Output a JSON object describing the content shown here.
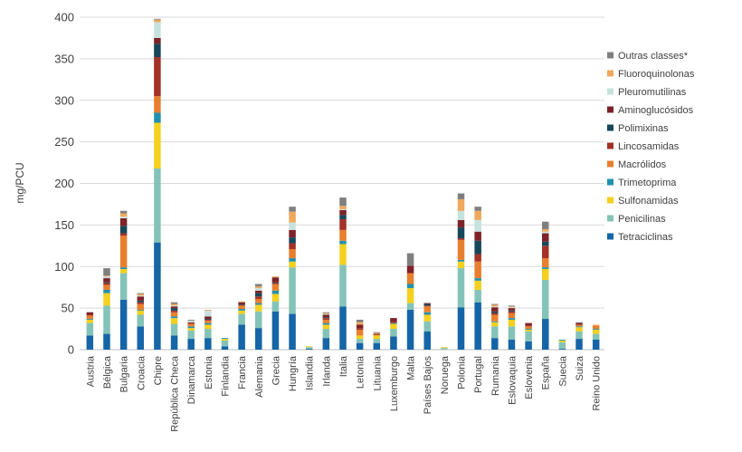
{
  "chart": {
    "y_axis_title": "mg/PCU",
    "colors": {
      "gridline": "#D9D9D9",
      "axis_line": "#BFBFBF",
      "text": "#404040"
    }
  },
  "chart_data": {
    "type": "bar",
    "subtype": "stacked",
    "title": "",
    "xlabel": "",
    "ylabel": "mg/PCU",
    "ylim": [
      0,
      400
    ],
    "y_ticks": [
      0,
      50,
      100,
      150,
      200,
      250,
      300,
      350,
      400
    ],
    "grid": true,
    "legend_position": "right",
    "legend_note": "legend lists series top-to-bottom in reverse stacking order",
    "categories": [
      "Austria",
      "Bélgica",
      "Bulgaria",
      "Croacia",
      "Chipre",
      "República Checa",
      "Dinamarca",
      "Estonia",
      "Finlandia",
      "Francia",
      "Alemania",
      "Grecia",
      "Hungría",
      "Islandia",
      "Irlanda",
      "Italia",
      "Letonia",
      "Lituania",
      "Luxemburgo",
      "Malta",
      "Países Bajos",
      "Noruega",
      "Polonia",
      "Portugal",
      "Rumania",
      "Eslovaquia",
      "Eslovenia",
      "España",
      "Suecia",
      "Suiza",
      "Reino Unido"
    ],
    "series": [
      {
        "name": "Tetraciclinas",
        "color": "#1565A7",
        "values": [
          17,
          19,
          60,
          28,
          129,
          17,
          13,
          14,
          4,
          30,
          26,
          46,
          43,
          1,
          14,
          52,
          8,
          8,
          16,
          48,
          22,
          0,
          51,
          57,
          14,
          12,
          10,
          37,
          1,
          13,
          12
        ]
      },
      {
        "name": "Penicilinas",
        "color": "#84C3B7",
        "values": [
          15,
          34,
          32,
          14,
          89,
          14,
          10,
          11,
          7,
          13,
          20,
          12,
          56,
          2,
          11,
          50,
          5,
          5,
          9,
          8,
          12,
          2,
          47,
          15,
          14,
          16,
          12,
          47,
          8,
          9,
          7
        ]
      },
      {
        "name": "Sulfonamidas",
        "color": "#F5D01E",
        "values": [
          4,
          15,
          5,
          5,
          55,
          7,
          3,
          5,
          2,
          4,
          8,
          9,
          7,
          1,
          5,
          25,
          4,
          4,
          6,
          18,
          8,
          1,
          8,
          11,
          5,
          8,
          2,
          13,
          2,
          5,
          5
        ]
      },
      {
        "name": "Trimetoprima",
        "color": "#2191B0",
        "values": [
          1,
          4,
          2,
          1,
          12,
          2,
          2,
          2,
          1,
          2,
          2,
          4,
          4,
          0,
          2,
          4,
          0,
          0,
          1,
          5,
          3,
          0,
          2,
          3,
          1,
          2,
          1,
          2,
          1,
          1,
          1
        ]
      },
      {
        "name": "Macrólidos",
        "color": "#E87F2E",
        "values": [
          4,
          6,
          38,
          7,
          20,
          5,
          3,
          3,
          0,
          4,
          5,
          8,
          11,
          0,
          4,
          13,
          7,
          1,
          0,
          13,
          7,
          0,
          24,
          20,
          8,
          6,
          3,
          11,
          0,
          2,
          4
        ]
      },
      {
        "name": "Lincosamidas",
        "color": "#A33227",
        "values": [
          1,
          2,
          3,
          2,
          47,
          2,
          1,
          1,
          0,
          1,
          3,
          1,
          7,
          0,
          2,
          13,
          2,
          0,
          1,
          0,
          1,
          0,
          2,
          9,
          2,
          2,
          1,
          15,
          0,
          0,
          0
        ]
      },
      {
        "name": "Polimixinas",
        "color": "#17475B",
        "values": [
          0,
          1,
          9,
          2,
          16,
          3,
          0,
          1,
          0,
          1,
          4,
          1,
          7,
          0,
          1,
          5,
          0,
          0,
          0,
          0,
          2,
          0,
          13,
          16,
          2,
          1,
          0,
          5,
          0,
          0,
          0
        ]
      },
      {
        "name": "Aminoglucósidos",
        "color": "#7E2228",
        "values": [
          3,
          5,
          9,
          5,
          7,
          2,
          1,
          3,
          0,
          2,
          3,
          6,
          9,
          0,
          3,
          6,
          4,
          1,
          5,
          9,
          1,
          0,
          9,
          11,
          5,
          3,
          3,
          10,
          0,
          2,
          0
        ]
      },
      {
        "name": "Pleuromutilinas",
        "color": "#C6E2DF",
        "values": [
          0,
          2,
          2,
          1,
          19,
          1,
          2,
          7,
          0,
          0,
          3,
          0,
          9,
          0,
          1,
          1,
          0,
          0,
          0,
          0,
          1,
          0,
          11,
          14,
          1,
          1,
          0,
          2,
          0,
          0,
          0
        ]
      },
      {
        "name": "Fluoroquinolonas",
        "color": "#EFA85C",
        "values": [
          0,
          1,
          4,
          2,
          3,
          2,
          0,
          1,
          0,
          1,
          2,
          1,
          13,
          0,
          1,
          4,
          3,
          1,
          0,
          0,
          0,
          0,
          14,
          11,
          2,
          1,
          0,
          3,
          0,
          0,
          1
        ]
      },
      {
        "name": "Outras classes*",
        "color": "#7F7F7F",
        "values": [
          0,
          9,
          3,
          1,
          1,
          2,
          1,
          0,
          0,
          0,
          3,
          0,
          6,
          0,
          1,
          10,
          3,
          1,
          0,
          15,
          0,
          0,
          7,
          5,
          1,
          1,
          0,
          9,
          0,
          1,
          0
        ]
      }
    ]
  }
}
